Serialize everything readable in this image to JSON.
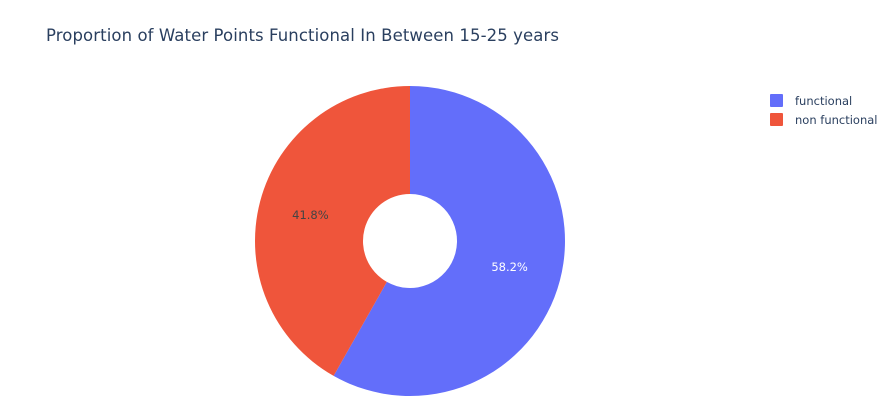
{
  "title": "Proportion of Water Points Functional In Between 15-25 years",
  "chart_data": {
    "type": "pie",
    "hole": true,
    "title": "Proportion of Water Points Functional In Between 15-25 years",
    "labels": [
      "functional",
      "non functional"
    ],
    "values": [
      58.2,
      41.8
    ],
    "value_labels": [
      "58.2%",
      "41.8%"
    ],
    "colors": [
      "#636efa",
      "#ef553b"
    ],
    "label_colors": [
      "#ffffff",
      "#444444"
    ],
    "direction": "clockwise",
    "start": "top",
    "legend_position": "top-right"
  },
  "legend": {
    "items": [
      {
        "label": "functional",
        "color": "#636efa"
      },
      {
        "label": "non functional",
        "color": "#ef553b"
      }
    ]
  }
}
